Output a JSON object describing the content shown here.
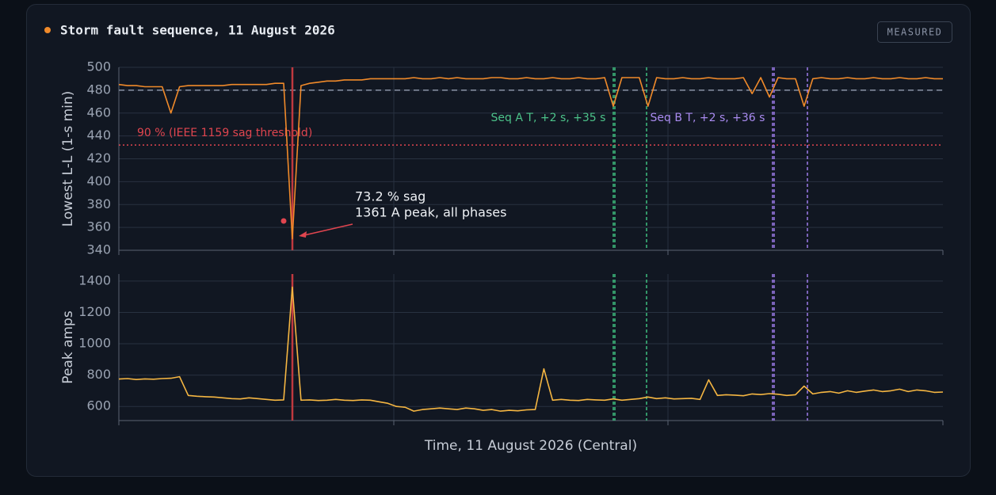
{
  "title": "Storm fault sequence, 11 August 2026",
  "badge": "MEASURED",
  "chart_data": [
    {
      "type": "line",
      "ylabel": "Lowest L-L (1-s min)",
      "ylim": [
        340,
        500
      ],
      "yticks": [
        340,
        360,
        380,
        400,
        420,
        440,
        460,
        480,
        500
      ],
      "grid": true,
      "series": [
        {
          "color": "#f08a2a",
          "values": [
            485,
            484,
            484,
            483,
            483,
            483,
            460,
            483,
            484,
            484,
            484,
            484,
            484,
            485,
            485,
            485,
            485,
            485,
            486,
            486,
            350,
            484,
            486,
            487,
            488,
            488,
            489,
            489,
            489,
            490,
            490,
            490,
            490,
            490,
            491,
            490,
            490,
            491,
            490,
            491,
            490,
            490,
            490,
            491,
            491,
            490,
            490,
            491,
            490,
            490,
            491,
            490,
            490,
            491,
            490,
            490,
            491,
            466,
            491,
            491,
            491,
            466,
            491,
            490,
            490,
            491,
            490,
            490,
            491,
            490,
            490,
            490,
            491,
            477,
            491,
            474,
            491,
            490,
            490,
            466,
            490,
            491,
            490,
            490,
            491,
            490,
            490,
            491,
            490,
            490,
            491,
            490,
            490,
            491,
            490,
            490
          ]
        }
      ],
      "reference_lines": [
        {
          "value": 480,
          "color": "#8a93a6"
        },
        {
          "value": 432,
          "color": "#e0454f",
          "label": "90 % (IEEE 1159 sag threshold)"
        }
      ],
      "annotations": [
        "Seq A T, +2 s, +35 s",
        "Seq B T, +2 s, +36 s",
        "73.2 % sag",
        "1361 A peak, all phases"
      ]
    },
    {
      "type": "line",
      "ylabel": "Peak amps",
      "xlabel": "Time, 11 August 2026 (Central)",
      "ylim": [
        510,
        1445
      ],
      "yticks": [
        600,
        800,
        1000,
        1200,
        1400
      ],
      "grid": true,
      "series": [
        {
          "color": "#f5b642",
          "values": [
            775,
            778,
            772,
            776,
            774,
            778,
            780,
            790,
            670,
            665,
            662,
            660,
            655,
            650,
            648,
            655,
            650,
            645,
            640,
            642,
            1361,
            640,
            642,
            638,
            640,
            645,
            640,
            638,
            642,
            640,
            630,
            620,
            600,
            595,
            570,
            580,
            585,
            590,
            585,
            580,
            590,
            585,
            575,
            580,
            570,
            575,
            572,
            578,
            580,
            840,
            640,
            645,
            640,
            638,
            645,
            642,
            640,
            648,
            640,
            645,
            650,
            660,
            650,
            655,
            648,
            650,
            652,
            645,
            770,
            670,
            675,
            672,
            668,
            680,
            676,
            682,
            678,
            670,
            675,
            730,
            680,
            690,
            695,
            685,
            700,
            690,
            698,
            705,
            695,
            700,
            710,
            695,
            705,
            700,
            690,
            692
          ]
        }
      ]
    }
  ]
}
